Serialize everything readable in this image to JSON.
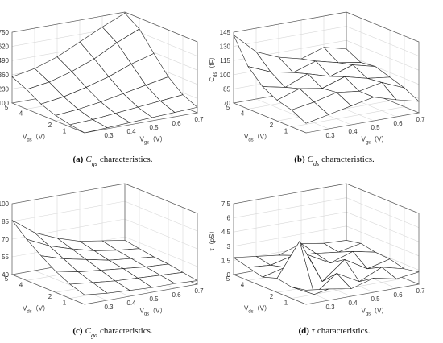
{
  "chart_data": [
    {
      "type": "surface",
      "zlabel": {
        "symbol": "C",
        "sub": "gs",
        "unit": "（fF）"
      },
      "xlabel": {
        "symbol": "V",
        "sub": "gs",
        "unit": "（V）"
      },
      "ylabel": {
        "symbol": "V",
        "sub": "ds",
        "unit": "（V）"
      },
      "caption": {
        "label": "(a)",
        "symbol": "C",
        "sub": "gs",
        "text": "characteristics."
      },
      "x": [
        0.2,
        0.3,
        0.4,
        0.5,
        0.6,
        0.7
      ],
      "y": [
        0,
        1,
        2,
        3,
        4,
        5
      ],
      "z": [
        [
          100,
          110,
          120,
          130,
          140,
          150
        ],
        [
          120,
          130,
          150,
          170,
          190,
          210
        ],
        [
          150,
          170,
          200,
          240,
          280,
          320
        ],
        [
          200,
          230,
          280,
          340,
          420,
          480
        ],
        [
          280,
          310,
          370,
          450,
          560,
          650
        ],
        [
          340,
          380,
          450,
          550,
          650,
          740
        ]
      ],
      "xlim": [
        0.2,
        0.7
      ],
      "ylim": [
        0,
        5
      ],
      "zlim": [
        100,
        750
      ],
      "xticks": [
        0.3,
        0.4,
        0.5,
        0.6,
        0.7
      ],
      "yticks": [
        1,
        2,
        4,
        5
      ],
      "zticks": [
        100,
        230,
        360,
        490,
        620,
        750
      ],
      "grid": true
    },
    {
      "type": "surface",
      "zlabel": {
        "symbol": "C",
        "sub": "ds",
        "unit": "（fF）"
      },
      "xlabel": {
        "symbol": "V",
        "sub": "gs",
        "unit": "（V）"
      },
      "ylabel": {
        "symbol": "V",
        "sub": "ds",
        "unit": "（V）"
      },
      "caption": {
        "label": "(b)",
        "symbol": "C",
        "sub": "ds",
        "text": "characteristics."
      },
      "x": [
        0.2,
        0.3,
        0.4,
        0.5,
        0.6,
        0.7
      ],
      "y": [
        0,
        1,
        2,
        3,
        4,
        5
      ],
      "z": [
        [
          80,
          85,
          90,
          95,
          88,
          82
        ],
        [
          88,
          92,
          98,
          95,
          100,
          90
        ],
        [
          92,
          100,
          96,
          104,
          98,
          95
        ],
        [
          100,
          95,
          105,
          98,
          106,
          100
        ],
        [
          115,
          105,
          100,
          108,
          102,
          98
        ],
        [
          142,
          120,
          110,
          104,
          112,
          106
        ]
      ],
      "xlim": [
        0.2,
        0.7
      ],
      "ylim": [
        0,
        5
      ],
      "zlim": [
        70,
        145
      ],
      "xticks": [
        0.3,
        0.4,
        0.5,
        0.6,
        0.7
      ],
      "yticks": [
        1,
        2,
        4,
        5
      ],
      "zticks": [
        70,
        85,
        100,
        115,
        130,
        145
      ],
      "grid": true
    },
    {
      "type": "surface",
      "zlabel": {
        "symbol": "C",
        "sub": "gd",
        "unit": "（fF）"
      },
      "xlabel": {
        "symbol": "V",
        "sub": "gs",
        "unit": "（V）"
      },
      "ylabel": {
        "symbol": "V",
        "sub": "ds",
        "unit": "（V）"
      },
      "caption": {
        "label": "(c)",
        "symbol": "C",
        "sub": "gd",
        "text": "characteristics."
      },
      "x": [
        0.2,
        0.3,
        0.4,
        0.5,
        0.6,
        0.7
      ],
      "y": [
        0,
        1,
        2,
        3,
        4,
        5
      ],
      "z": [
        [
          48,
          46,
          45,
          44,
          44,
          43
        ],
        [
          52,
          50,
          48,
          47,
          46,
          45
        ],
        [
          58,
          54,
          52,
          50,
          48,
          47
        ],
        [
          66,
          60,
          56,
          52,
          50,
          48
        ],
        [
          75,
          66,
          60,
          55,
          52,
          50
        ],
        [
          86,
          72,
          64,
          58,
          55,
          52
        ]
      ],
      "xlim": [
        0.2,
        0.7
      ],
      "ylim": [
        0,
        5
      ],
      "zlim": [
        40,
        100
      ],
      "xticks": [
        0.3,
        0.4,
        0.5,
        0.6,
        0.7
      ],
      "yticks": [
        1,
        2,
        4,
        5
      ],
      "zticks": [
        40,
        55,
        70,
        85,
        100
      ],
      "grid": true
    },
    {
      "type": "surface",
      "zlabel": {
        "symbol": "τ",
        "unit": "（pS）"
      },
      "xlabel": {
        "symbol": "V",
        "sub": "gs",
        "unit": "（V）"
      },
      "ylabel": {
        "symbol": "V",
        "sub": "ds",
        "unit": "（V）"
      },
      "caption": {
        "label": "(d)",
        "symbol": "τ",
        "text": "characteristics."
      },
      "x": [
        0.2,
        0.3,
        0.4,
        0.5,
        0.6,
        0.7
      ],
      "y": [
        0,
        1,
        2,
        3,
        4,
        5
      ],
      "z": [
        [
          1.5,
          1.2,
          0.8,
          1.5,
          1.0,
          1.3
        ],
        [
          1.2,
          0,
          1.8,
          0.5,
          1.6,
          1.0
        ],
        [
          1.5,
          5.0,
          0.3,
          2.2,
          0.8,
          1.4
        ],
        [
          1.0,
          1.6,
          2.5,
          1.2,
          2.0,
          1.5
        ],
        [
          1.4,
          1.2,
          1.8,
          1.6,
          1.3,
          1.8
        ],
        [
          1.8,
          1.5,
          1.2,
          2.0,
          1.6,
          1.5
        ]
      ],
      "xlim": [
        0.2,
        0.7
      ],
      "ylim": [
        0,
        5
      ],
      "zlim": [
        0,
        7.5
      ],
      "xticks": [
        0.3,
        0.4,
        0.5,
        0.6,
        0.7
      ],
      "yticks": [
        1,
        2,
        4,
        5
      ],
      "zticks": [
        0,
        1.5,
        3,
        4.5,
        6,
        7.5
      ],
      "grid": true
    }
  ]
}
